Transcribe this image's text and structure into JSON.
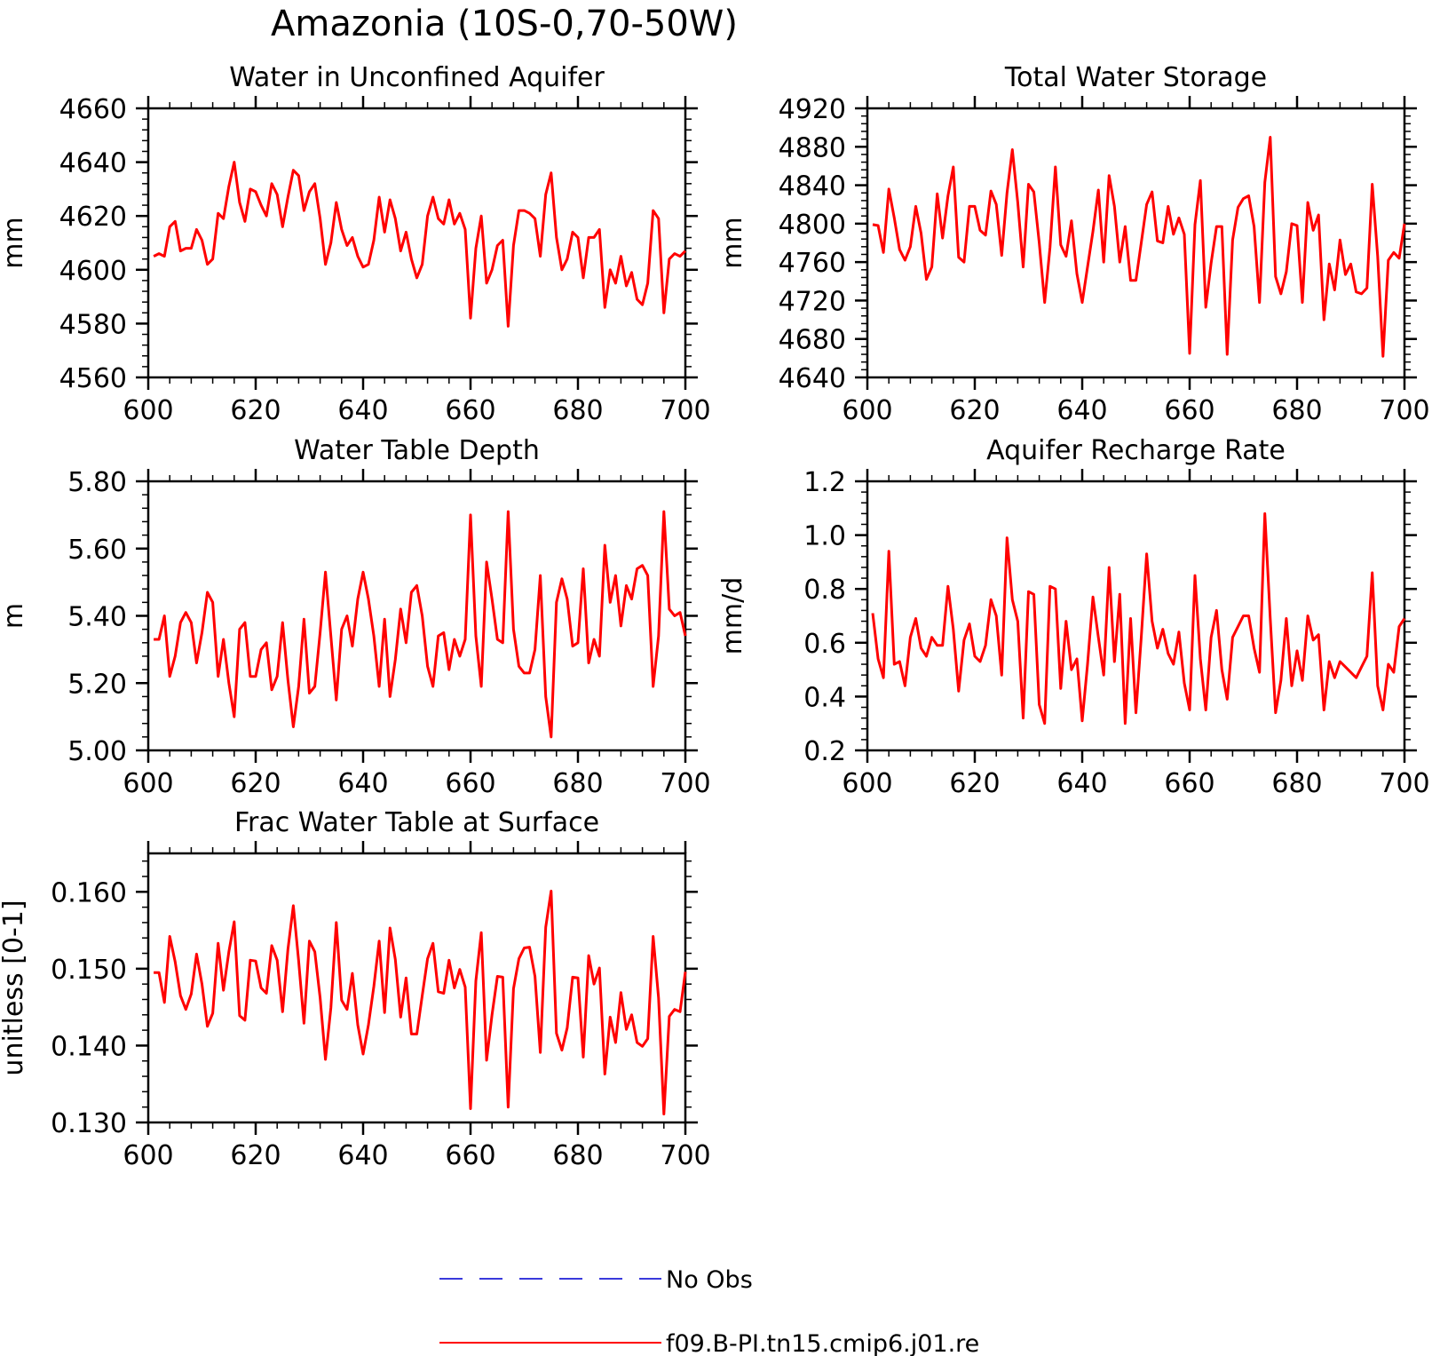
{
  "title": "Amazonia (10S-0,70-50W)",
  "chart_data": [
    {
      "type": "line",
      "title": "Water in Unconfined Aquifer",
      "ylabel": "mm",
      "xlim": [
        600,
        700
      ],
      "ylim": [
        4560,
        4660
      ],
      "xticks": [
        "600",
        "620",
        "640",
        "660",
        "680",
        "700"
      ],
      "yticks": [
        "4560",
        "4580",
        "4600",
        "4620",
        "4640",
        "4660"
      ],
      "x_start": 601,
      "series": [
        {
          "name": "f09.B-PI.tn15.cmip6.j01.re",
          "values": [
            4605,
            4606,
            4605,
            4616,
            4618,
            4607,
            4608,
            4608,
            4615,
            4611,
            4602,
            4604,
            4621,
            4619,
            4631,
            4640,
            4625,
            4618,
            4630,
            4629,
            4624,
            4620,
            4632,
            4628,
            4616,
            4627,
            4637,
            4635,
            4622,
            4629,
            4632,
            4619,
            4602,
            4610,
            4625,
            4615,
            4609,
            4612,
            4605,
            4601,
            4602,
            4611,
            4627,
            4614,
            4626,
            4619,
            4607,
            4614,
            4604,
            4597,
            4602,
            4620,
            4627,
            4619,
            4617,
            4626,
            4617,
            4621,
            4615,
            4582,
            4608,
            4620,
            4595,
            4600,
            4609,
            4611,
            4579,
            4609,
            4622,
            4622,
            4621,
            4619,
            4605,
            4628,
            4636,
            4612,
            4600,
            4604,
            4614,
            4612,
            4597,
            4612,
            4612,
            4615,
            4586,
            4600,
            4595,
            4605,
            4594,
            4599,
            4589,
            4587,
            4595,
            4622,
            4619,
            4584,
            4604,
            4606,
            4605,
            4607
          ]
        }
      ]
    },
    {
      "type": "line",
      "title": "Total Water Storage",
      "ylabel": "mm",
      "xlim": [
        600,
        700
      ],
      "ylim": [
        4640,
        4920
      ],
      "xticks": [
        "600",
        "620",
        "640",
        "660",
        "680",
        "700"
      ],
      "yticks": [
        "4640",
        "4680",
        "4720",
        "4760",
        "4800",
        "4840",
        "4880",
        "4920"
      ],
      "x_start": 601,
      "series": [
        {
          "name": "f09.B-PI.tn15.cmip6.j01.re",
          "values": [
            4799,
            4798,
            4770,
            4836,
            4806,
            4773,
            4762,
            4776,
            4818,
            4790,
            4742,
            4755,
            4831,
            4785,
            4829,
            4859,
            4765,
            4760,
            4818,
            4818,
            4793,
            4788,
            4834,
            4820,
            4767,
            4832,
            4877,
            4822,
            4755,
            4841,
            4833,
            4780,
            4718,
            4775,
            4859,
            4778,
            4766,
            4803,
            4748,
            4718,
            4755,
            4792,
            4835,
            4760,
            4850,
            4818,
            4760,
            4797,
            4741,
            4741,
            4780,
            4820,
            4833,
            4782,
            4780,
            4818,
            4789,
            4806,
            4789,
            4665,
            4799,
            4845,
            4713,
            4759,
            4797,
            4797,
            4664,
            4783,
            4817,
            4826,
            4829,
            4797,
            4718,
            4843,
            4890,
            4745,
            4727,
            4750,
            4800,
            4798,
            4718,
            4822,
            4793,
            4809,
            4700,
            4758,
            4731,
            4783,
            4747,
            4758,
            4729,
            4727,
            4733,
            4841,
            4766,
            4662,
            4762,
            4770,
            4764,
            4800
          ]
        }
      ]
    },
    {
      "type": "line",
      "title": "Water Table Depth",
      "ylabel": "m",
      "xlim": [
        600,
        700
      ],
      "ylim": [
        5.0,
        5.8
      ],
      "xticks": [
        "600",
        "620",
        "640",
        "660",
        "680",
        "700"
      ],
      "yticks": [
        "5.00",
        "5.20",
        "5.40",
        "5.60",
        "5.80"
      ],
      "x_start": 601,
      "series": [
        {
          "name": "f09.B-PI.tn15.cmip6.j01.re",
          "values": [
            5.33,
            5.33,
            5.4,
            5.22,
            5.28,
            5.38,
            5.41,
            5.38,
            5.26,
            5.35,
            5.47,
            5.44,
            5.22,
            5.33,
            5.2,
            5.1,
            5.36,
            5.38,
            5.22,
            5.22,
            5.3,
            5.32,
            5.18,
            5.22,
            5.38,
            5.21,
            5.07,
            5.19,
            5.39,
            5.17,
            5.19,
            5.35,
            5.53,
            5.34,
            5.15,
            5.36,
            5.4,
            5.31,
            5.45,
            5.53,
            5.45,
            5.34,
            5.19,
            5.39,
            5.16,
            5.27,
            5.42,
            5.32,
            5.47,
            5.49,
            5.4,
            5.25,
            5.19,
            5.34,
            5.35,
            5.24,
            5.33,
            5.28,
            5.33,
            5.7,
            5.34,
            5.19,
            5.56,
            5.45,
            5.33,
            5.32,
            5.71,
            5.36,
            5.25,
            5.23,
            5.23,
            5.3,
            5.52,
            5.16,
            5.04,
            5.44,
            5.51,
            5.45,
            5.31,
            5.32,
            5.54,
            5.26,
            5.33,
            5.28,
            5.61,
            5.44,
            5.52,
            5.37,
            5.49,
            5.45,
            5.54,
            5.55,
            5.52,
            5.19,
            5.34,
            5.71,
            5.42,
            5.4,
            5.41,
            5.34
          ]
        }
      ]
    },
    {
      "type": "line",
      "title": "Aquifer Recharge Rate",
      "ylabel": "mm/d",
      "xlim": [
        600,
        700
      ],
      "ylim": [
        0.2,
        1.2
      ],
      "xticks": [
        "600",
        "620",
        "640",
        "660",
        "680",
        "700"
      ],
      "yticks": [
        "0.2",
        "0.4",
        "0.6",
        "0.8",
        "1.0",
        "1.2"
      ],
      "x_start": 601,
      "series": [
        {
          "name": "f09.B-PI.tn15.cmip6.j01.re",
          "values": [
            0.71,
            0.54,
            0.47,
            0.94,
            0.52,
            0.53,
            0.44,
            0.62,
            0.69,
            0.58,
            0.55,
            0.62,
            0.59,
            0.59,
            0.81,
            0.65,
            0.42,
            0.61,
            0.67,
            0.55,
            0.53,
            0.59,
            0.76,
            0.7,
            0.48,
            0.99,
            0.76,
            0.68,
            0.32,
            0.79,
            0.78,
            0.37,
            0.3,
            0.81,
            0.8,
            0.43,
            0.68,
            0.5,
            0.54,
            0.31,
            0.52,
            0.77,
            0.62,
            0.48,
            0.88,
            0.53,
            0.78,
            0.3,
            0.69,
            0.34,
            0.62,
            0.93,
            0.68,
            0.58,
            0.65,
            0.56,
            0.52,
            0.64,
            0.45,
            0.35,
            0.85,
            0.54,
            0.35,
            0.62,
            0.72,
            0.5,
            0.39,
            0.62,
            0.66,
            0.7,
            0.7,
            0.58,
            0.49,
            1.08,
            0.69,
            0.34,
            0.46,
            0.69,
            0.44,
            0.57,
            0.46,
            0.7,
            0.61,
            0.63,
            0.35,
            0.53,
            0.47,
            0.53,
            0.51,
            0.49,
            0.47,
            0.51,
            0.55,
            0.86,
            0.44,
            0.35,
            0.52,
            0.49,
            0.66,
            0.69
          ]
        }
      ]
    },
    {
      "type": "line",
      "title": "Frac Water Table at Surface",
      "ylabel": "unitless [0-1]",
      "xlim": [
        600,
        700
      ],
      "ylim": [
        0.13,
        0.165
      ],
      "xticks": [
        "600",
        "620",
        "640",
        "660",
        "680",
        "700"
      ],
      "yticks": [
        "0.130",
        "0.140",
        "0.150",
        "0.160"
      ],
      "x_start": 601,
      "series": [
        {
          "name": "f09.B-PI.tn15.cmip6.j01.re",
          "values": [
            0.1495,
            0.1495,
            0.1456,
            0.1542,
            0.1509,
            0.1465,
            0.1447,
            0.1467,
            0.1519,
            0.148,
            0.1425,
            0.1442,
            0.1533,
            0.1472,
            0.1522,
            0.1561,
            0.1439,
            0.1433,
            0.1511,
            0.151,
            0.1475,
            0.1468,
            0.153,
            0.1511,
            0.1444,
            0.1525,
            0.1582,
            0.151,
            0.1429,
            0.1536,
            0.1522,
            0.1462,
            0.1382,
            0.1449,
            0.156,
            0.1459,
            0.1447,
            0.1494,
            0.1427,
            0.1389,
            0.1427,
            0.1477,
            0.1536,
            0.1443,
            0.1553,
            0.1512,
            0.1437,
            0.1488,
            0.1415,
            0.1415,
            0.1465,
            0.1513,
            0.1533,
            0.147,
            0.1468,
            0.1511,
            0.1475,
            0.1499,
            0.1476,
            0.1318,
            0.1484,
            0.1547,
            0.1381,
            0.144,
            0.149,
            0.1489,
            0.132,
            0.1474,
            0.1513,
            0.1527,
            0.1528,
            0.149,
            0.1391,
            0.1554,
            0.1601,
            0.1416,
            0.1394,
            0.1423,
            0.1489,
            0.1488,
            0.1385,
            0.1517,
            0.148,
            0.1501,
            0.1363,
            0.1437,
            0.1404,
            0.1469,
            0.1421,
            0.144,
            0.1404,
            0.1399,
            0.1409,
            0.1542,
            0.1462,
            0.1311,
            0.1438,
            0.1447,
            0.1444,
            0.1496
          ]
        }
      ]
    }
  ],
  "legend": [
    {
      "label": "No Obs",
      "color": "#3a3adb",
      "dash": "dashed"
    },
    {
      "label": "f09.B-PI.tn15.cmip6.j01.re",
      "color": "#ff0000",
      "dash": "solid"
    }
  ],
  "colors": {
    "series": "#ff0000",
    "obs": "#3a3adb",
    "axis": "#000000"
  }
}
